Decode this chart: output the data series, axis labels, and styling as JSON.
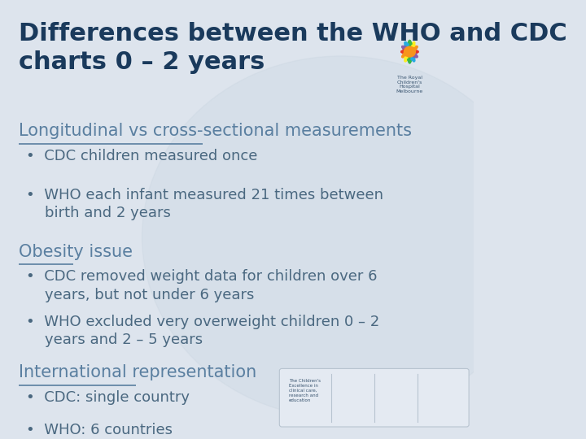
{
  "title_line1": "Differences between the WHO and CDC",
  "title_line2": "charts 0 – 2 years",
  "title_color": "#1a3a5c",
  "title_fontsize": 22,
  "bg_color": "#dde4ed",
  "section1_heading": "Longitudinal vs cross-sectional measurements",
  "section1_bullets": [
    "CDC children measured once",
    "WHO each infant measured 21 times between\n    birth and 2 years"
  ],
  "section2_heading": "Obesity issue",
  "section2_bullets": [
    "CDC removed weight data for children over 6\n    years, but not under 6 years",
    "WHO excluded very overweight children 0 – 2\n    years and 2 – 5 years"
  ],
  "section3_heading": "International representation",
  "section3_bullets": [
    "CDC: single country",
    "WHO: 6 countries"
  ],
  "heading_color": "#5a7fa0",
  "heading_fontsize": 15,
  "bullet_color": "#4a6880",
  "bullet_fontsize": 13,
  "underline_color": "#5a7fa0"
}
